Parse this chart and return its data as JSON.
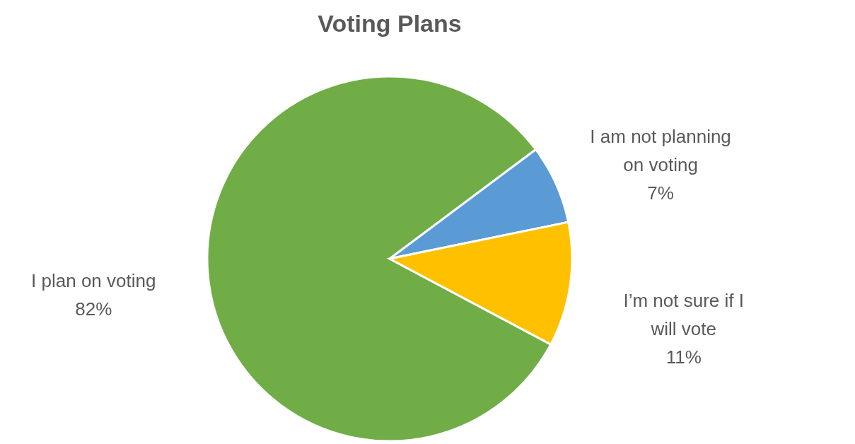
{
  "chart_data": {
    "type": "pie",
    "title": "Voting Plans",
    "categories": [
      "I plan on voting",
      "I am not planning on voting",
      "I’m not sure if I will vote"
    ],
    "values": [
      82,
      7,
      11
    ],
    "value_labels": [
      "82%",
      "7%",
      "11%"
    ],
    "colors": [
      "#70ad47",
      "#5b9bd5",
      "#ffc000"
    ]
  }
}
